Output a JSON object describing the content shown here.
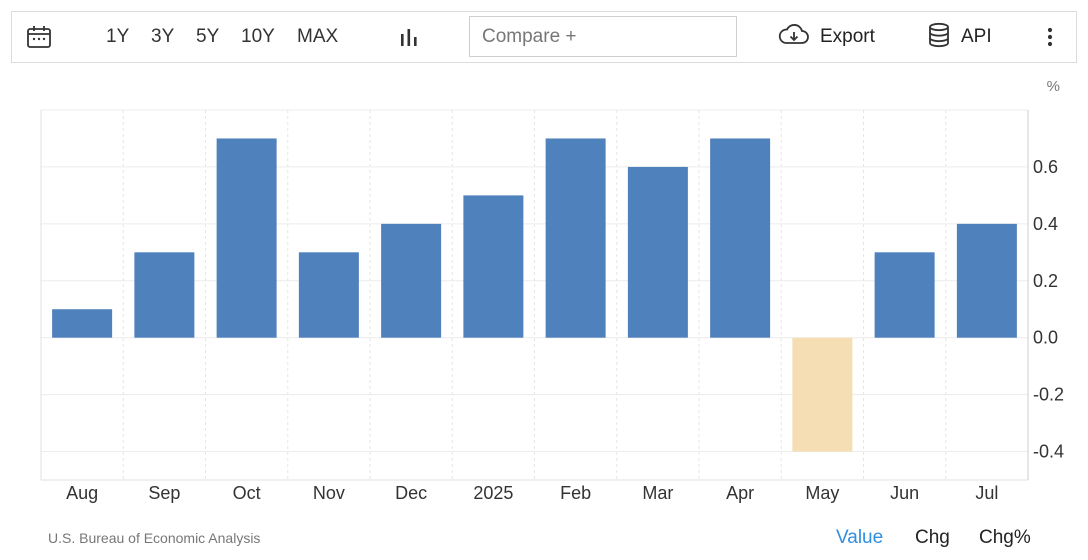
{
  "toolbar": {
    "ranges": [
      "1Y",
      "3Y",
      "5Y",
      "10Y",
      "MAX"
    ],
    "compare_placeholder": "Compare +",
    "export_label": "Export",
    "api_label": "API",
    "icons": {
      "calendar": "calendar-icon",
      "chart_type": "bar-chart-icon",
      "export": "cloud-download-icon",
      "api": "database-icon",
      "more": "more-vertical-icon"
    }
  },
  "footer": {
    "source": "U.S. Bureau of Economic Analysis",
    "tabs": [
      "Value",
      "Chg",
      "Chg%"
    ],
    "active_tab": "Value"
  },
  "colors": {
    "positive_bar": "#4f81bd",
    "negative_bar": "#f5deb3",
    "active_tab": "#2f8fe0"
  },
  "chart_data": {
    "type": "bar",
    "categories": [
      "Aug",
      "Sep",
      "Oct",
      "Nov",
      "Dec",
      "2025",
      "Feb",
      "Mar",
      "Apr",
      "May",
      "Jun",
      "Jul"
    ],
    "values": [
      0.1,
      0.3,
      0.7,
      0.3,
      0.4,
      0.5,
      0.7,
      0.6,
      0.7,
      -0.4,
      0.3,
      0.4
    ],
    "unit": "%",
    "ylim": [
      -0.5,
      0.8
    ],
    "yticks": [
      -0.4,
      -0.2,
      0.0,
      0.2,
      0.4,
      0.6
    ],
    "ytick_labels": [
      "-0.4",
      "-0.2",
      "0.0",
      "0.2",
      "0.4",
      "0.6"
    ],
    "grid": true,
    "axis_position": "right"
  }
}
